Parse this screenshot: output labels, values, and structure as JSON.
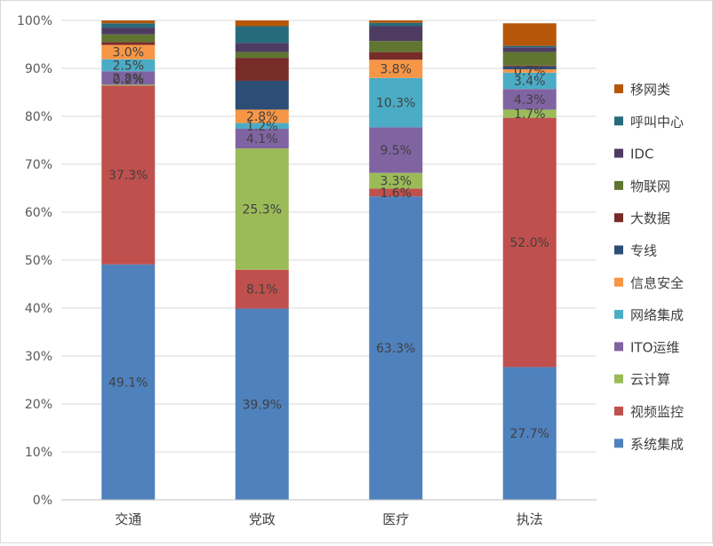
{
  "chart_data": {
    "type": "bar",
    "stacked": true,
    "percent_stacked": true,
    "categories": [
      "交通",
      "党政",
      "医疗",
      "执法"
    ],
    "y_ticks": [
      "0%",
      "10%",
      "20%",
      "30%",
      "40%",
      "50%",
      "60%",
      "70%",
      "80%",
      "90%",
      "100%"
    ],
    "ylim": [
      0,
      100
    ],
    "grid": true,
    "legend_position": "right",
    "series": [
      {
        "name": "系统集成",
        "color": "#4F81BD",
        "values": [
          49.1,
          39.9,
          63.3,
          27.7
        ],
        "labels": [
          "49.1%",
          "39.9%",
          "63.3%",
          "27.7%"
        ]
      },
      {
        "name": "视频监控",
        "color": "#C0504D",
        "values": [
          37.3,
          8.1,
          1.6,
          52.0
        ],
        "labels": [
          "37.3%",
          "8.1%",
          "1.6%",
          "52.0%"
        ]
      },
      {
        "name": "云计算",
        "color": "#9BBB59",
        "values": [
          0.2,
          25.3,
          3.3,
          1.7
        ],
        "labels": [
          "",
          "25.3%",
          "3.3%",
          "1.7%"
        ]
      },
      {
        "name": "ITO运维",
        "color": "#8064A2",
        "values": [
          2.8,
          4.1,
          9.5,
          4.3
        ],
        "labels": [
          "2.8%",
          "4.1%",
          "9.5%",
          "4.3%"
        ]
      },
      {
        "name": "网络集成",
        "color": "#4BACC6",
        "values": [
          2.5,
          1.2,
          10.3,
          3.4
        ],
        "labels": [
          "2.5%",
          "1.2%",
          "10.3%",
          "3.4%"
        ]
      },
      {
        "name": "信息安全",
        "color": "#F79646",
        "values": [
          3.0,
          2.8,
          3.8,
          0.7
        ],
        "labels": [
          "3.0%",
          "2.8%",
          "3.8%",
          "0.7%"
        ]
      },
      {
        "name": "专线",
        "color": "#2C4D75",
        "values": [
          0.0,
          6.0,
          0.0,
          0.6
        ],
        "labels": [
          "",
          "",
          "",
          ""
        ]
      },
      {
        "name": "大数据",
        "color": "#772C2A",
        "values": [
          0.6,
          4.8,
          1.6,
          0.2
        ],
        "labels": [
          "",
          "",
          "",
          ""
        ]
      },
      {
        "name": "物联网",
        "color": "#5F7530",
        "values": [
          1.6,
          1.2,
          2.3,
          2.8
        ],
        "labels": [
          "",
          "",
          "",
          ""
        ]
      },
      {
        "name": "IDC",
        "color": "#4D3B62",
        "values": [
          1.4,
          1.9,
          3.1,
          1.0
        ],
        "labels": [
          "",
          "",
          "",
          ""
        ]
      },
      {
        "name": "呼叫中心",
        "color": "#276A7C",
        "values": [
          0.9,
          3.5,
          0.7,
          0.3
        ],
        "labels": [
          "",
          "",
          "",
          ""
        ]
      },
      {
        "name": "移网类",
        "color": "#B65708",
        "values": [
          0.6,
          1.2,
          0.5,
          4.7
        ],
        "labels": [
          "",
          "",
          "",
          ""
        ]
      }
    ],
    "data_label_markers": {
      "交通_云计算": "0.2%"
    }
  }
}
